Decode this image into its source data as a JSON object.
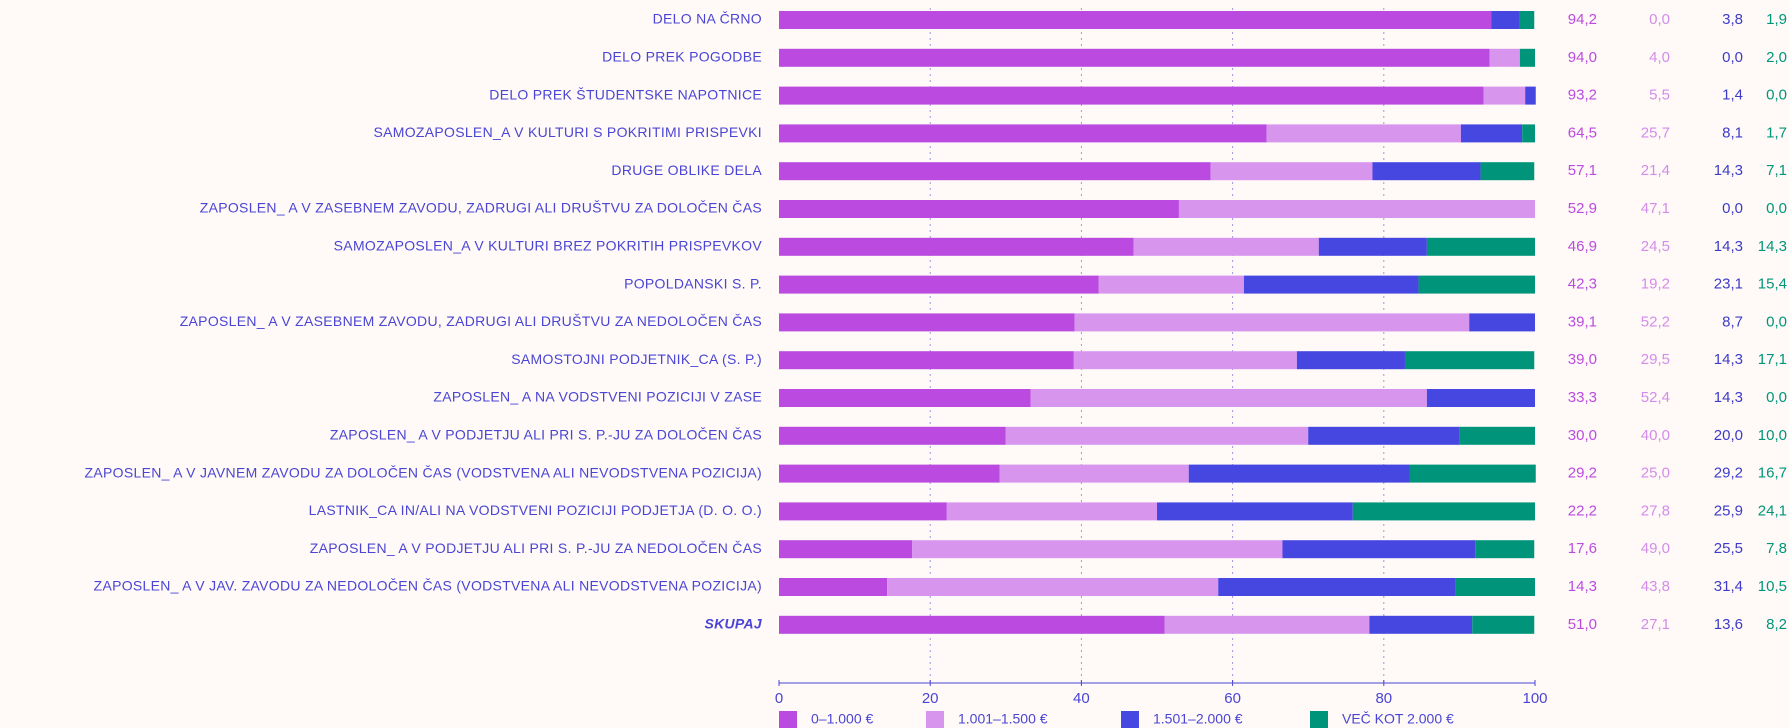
{
  "chart_data": {
    "type": "stacked_bar_horizontal",
    "categories": [
      "DELO NA ČRNO",
      "DELO PREK POGODBE",
      "DELO PREK ŠTUDENTSKE NAPOTNICE",
      "SAMOZAPOSLEN_A V KULTURI S POKRITIMI PRISPEVKI",
      "DRUGE OBLIKE DELA",
      "ZAPOSLEN_ A V ZASEBNEM ZAVODU, ZADRUGI ALI DRUŠTVU ZA DOLOČEN ČAS",
      "SAMOZAPOSLEN_A V KULTURI BREZ POKRITIH PRISPEVKOV",
      "POPOLDANSKI S. P.",
      "ZAPOSLEN_ A V ZASEBNEM ZAVODU, ZADRUGI ALI DRUŠTVU ZA NEDOLOČEN ČAS",
      "SAMOSTOJNI PODJETNIK_CA (S. P.)",
      "ZAPOSLEN_ A NA VODSTVENI POZICIJI V ZASE",
      "ZAPOSLEN_ A V PODJETJU ALI PRI S. P.-JU ZA DOLOČEN ČAS",
      "ZAPOSLEN_ A V JAVNEM ZAVODU ZA DOLOČEN ČAS (VODSTVENA ALI NEVODSTVENA POZICIJA)",
      "LASTNIK_CA IN/ALI NA VODSTVENI POZICIJI PODJETJA (D. O. O.)",
      "ZAPOSLEN_ A V PODJETJU ALI PRI S. P.-JU ZA NEDOLOČEN ČAS",
      "ZAPOSLEN_ A V JAV. ZAVODU ZA NEDOLOČEN ČAS (VODSTVENA ALI NEVODSTVENA POZICIJA)",
      "SKUPAJ"
    ],
    "series": [
      {
        "name": "0–1.000 €",
        "color": "#bb4be0",
        "label_color": "#bb4be0",
        "values": [
          94.2,
          94.0,
          93.2,
          64.5,
          57.1,
          52.9,
          46.9,
          42.3,
          39.1,
          39.0,
          33.3,
          30.0,
          29.2,
          22.2,
          17.6,
          14.3,
          51.0
        ],
        "value_labels": [
          "94,2",
          "94,0",
          "93,2",
          "64,5",
          "57,1",
          "52,9",
          "46,9",
          "42,3",
          "39,1",
          "39,0",
          "33,3",
          "30,0",
          "29,2",
          "22,2",
          "17,6",
          "14,3",
          "51,0"
        ]
      },
      {
        "name": "1.001–1.500 €",
        "color": "#d895ee",
        "label_color": "#d48ceb",
        "values": [
          0.0,
          4.0,
          5.5,
          25.7,
          21.4,
          47.1,
          24.5,
          19.2,
          52.2,
          29.5,
          52.4,
          40.0,
          25.0,
          27.8,
          49.0,
          43.8,
          27.1
        ],
        "value_labels": [
          "0,0",
          "4,0",
          "5,5",
          "25,7",
          "21,4",
          "47,1",
          "24,5",
          "19,2",
          "52,2",
          "29,5",
          "52,4",
          "40,0",
          "25,0",
          "27,8",
          "49,0",
          "43,8",
          "27,1"
        ]
      },
      {
        "name": "1.501–2.000 €",
        "color": "#4646e0",
        "label_color": "#3c3cc8",
        "values": [
          3.8,
          0.0,
          1.4,
          8.1,
          14.3,
          0.0,
          14.3,
          23.1,
          8.7,
          14.3,
          14.3,
          20.0,
          29.2,
          25.9,
          25.5,
          31.4,
          13.6
        ],
        "value_labels": [
          "3,8",
          "0,0",
          "1,4",
          "8,1",
          "14,3",
          "0,0",
          "14,3",
          "23,1",
          "8,7",
          "14,3",
          "14,3",
          "20,0",
          "29,2",
          "25,9",
          "25,5",
          "31,4",
          "13,6"
        ]
      },
      {
        "name": "VEČ KOT  2.000 €",
        "color": "#00957a",
        "label_color": "#00957a",
        "values": [
          1.9,
          2.0,
          0.0,
          1.7,
          7.1,
          0.0,
          14.3,
          15.4,
          0.0,
          17.1,
          0.0,
          10.0,
          16.7,
          24.1,
          7.8,
          10.5,
          8.2
        ],
        "value_labels": [
          "1,9",
          "2,0",
          "0,0",
          "1,7",
          "7,1",
          "0,0",
          "14,3",
          "15,4",
          "0,0",
          "17,1",
          "0,0",
          "10,0",
          "16,7",
          "24,1",
          "7,8",
          "10,5",
          "8,2"
        ]
      }
    ],
    "xlim": [
      0,
      100
    ],
    "xticks": [
      0,
      20,
      40,
      60,
      80,
      100
    ],
    "grid": true,
    "legend": "bottom"
  }
}
